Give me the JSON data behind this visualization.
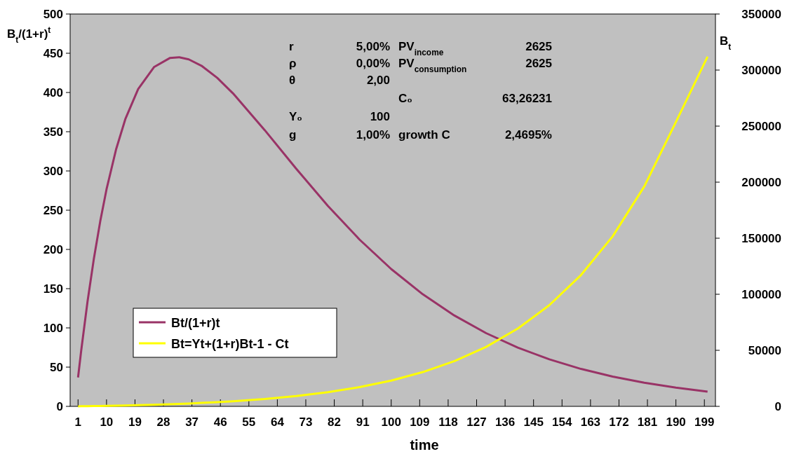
{
  "chart_data": {
    "type": "line",
    "xlabel": "time",
    "ylabel": "B$_{t}$/(1+r)$^{t}$",
    "y2label": "B$_{t}$",
    "x": [
      1,
      2,
      4,
      6,
      8,
      10,
      13,
      16,
      20,
      25,
      30,
      33,
      36,
      40,
      45,
      50,
      60,
      70,
      80,
      90,
      100,
      110,
      120,
      130,
      140,
      150,
      160,
      170,
      180,
      190,
      200
    ],
    "series": [
      {
        "name": "Bt/(1+r)t",
        "color": "#993366",
        "values": [
          36.8,
          71.2,
          133.7,
          188.2,
          235.6,
          276.6,
          327.2,
          366.7,
          404.4,
          432.3,
          443.9,
          444.9,
          442.2,
          434.1,
          418.6,
          398.8,
          352.1,
          302.7,
          255.4,
          212.5,
          175.0,
          142.8,
          115.7,
          93.3,
          74.9,
          59.9,
          47.7,
          37.9,
          30.1,
          23.9,
          18.8
        ]
      },
      {
        "name": "Bt=Yt+(1+r)Bt-1 - Ct",
        "color": "#ffff00",
        "axis": "y2",
        "values": [
          39,
          79,
          163,
          252,
          348,
          451,
          617,
          800,
          1073,
          1464,
          1919,
          2226,
          2561,
          3056,
          3761,
          4573,
          6577,
          9210,
          12658,
          17155,
          23013,
          30587,
          40369,
          53023,
          69335,
          90323,
          117151,
          151638,
          196160,
          253722,
          312000
        ]
      }
    ],
    "xlim": [
      -1.5,
      202.5
    ],
    "xticks": [
      1,
      10,
      19,
      28,
      37,
      46,
      55,
      64,
      73,
      82,
      91,
      100,
      109,
      118,
      127,
      136,
      145,
      154,
      163,
      172,
      181,
      190,
      199
    ],
    "ylim": [
      0,
      500
    ],
    "yticks": [
      0,
      50,
      100,
      150,
      200,
      250,
      300,
      350,
      400,
      450,
      500
    ],
    "y2lim": [
      0,
      350000
    ],
    "y2ticks": [
      0,
      50000,
      100000,
      150000,
      200000,
      250000,
      300000,
      350000
    ],
    "grid": false,
    "legend": "bottom left",
    "marker": "none",
    "line_style": "solid",
    "annotations": [
      "r",
      "5,00%",
      "PV$_{income}$",
      "2625",
      "ρ",
      "0,00%",
      "PV$_{consumption}$",
      "2625",
      "θ",
      "2,00",
      "C₀",
      "63,26231",
      "Y₀",
      "100",
      "g",
      "1,00%",
      "growth C",
      "2,4695%"
    ]
  }
}
